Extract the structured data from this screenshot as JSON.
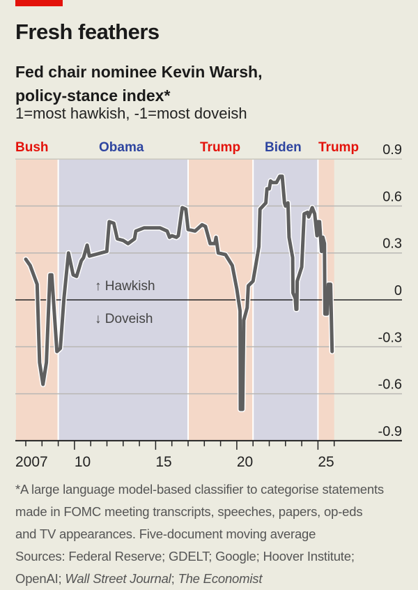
{
  "header": {
    "title": "Fresh feathers",
    "subtitle_line1": "Fed chair nominee Kevin Warsh,",
    "subtitle_line2": "policy-stance index*",
    "unit": "1=most hawkish, -1=most doveish"
  },
  "colors": {
    "republican": "#e3120b",
    "democrat": "#2e45a0",
    "republican_shade": "#f4d8c8",
    "democrat_shade": "#d5d5e2",
    "line": "#5f5f5f",
    "background": "#ecebe0"
  },
  "chart_data": {
    "type": "line",
    "ylabel": "",
    "xlabel": "",
    "ylim": [
      -0.9,
      0.9
    ],
    "xlim": [
      2006.4,
      2026.0
    ],
    "yticks": [
      0.9,
      0.6,
      0.3,
      0,
      -0.3,
      -0.6,
      -0.9
    ],
    "ytick_labels": [
      "0.9",
      "0.6",
      "0.3",
      "0",
      "-0.3",
      "-0.6",
      "-0.9"
    ],
    "xtick_labels": [
      {
        "year": 2007,
        "label": "2007"
      },
      {
        "year": 2010,
        "label": "10"
      },
      {
        "year": 2015,
        "label": "15"
      },
      {
        "year": 2020,
        "label": "20"
      },
      {
        "year": 2025,
        "label": "25"
      }
    ],
    "grid": true,
    "annotations": [
      "↑ Hawkish",
      "↓ Doveish"
    ],
    "periods": [
      {
        "label": "Bush",
        "party": "republican",
        "start": 2006.4,
        "end": 2009.0
      },
      {
        "label": "Obama",
        "party": "democrat",
        "start": 2009.0,
        "end": 2017.0
      },
      {
        "label": "Trump",
        "party": "republican",
        "start": 2017.0,
        "end": 2021.0
      },
      {
        "label": "Biden",
        "party": "democrat",
        "start": 2021.0,
        "end": 2025.0
      },
      {
        "label": "Trump",
        "party": "republican",
        "start": 2025.0,
        "end": 2026.0
      }
    ],
    "x": [
      2007.0,
      2007.27,
      2007.7,
      2007.85,
      2008.06,
      2008.27,
      2008.49,
      2008.6,
      2008.92,
      2009.13,
      2009.35,
      2009.63,
      2009.92,
      2010.13,
      2010.42,
      2010.56,
      2010.78,
      2010.92,
      2011.99,
      2012.14,
      2012.42,
      2012.64,
      2013.0,
      2013.3,
      2013.7,
      2013.78,
      2014.28,
      2015.28,
      2015.71,
      2015.86,
      2016.0,
      2016.28,
      2016.4,
      2016.64,
      2016.86,
      2017.0,
      2017.43,
      2017.86,
      2018.07,
      2018.36,
      2018.65,
      2018.72,
      2018.86,
      2019.3,
      2019.72,
      2020.0,
      2020.2,
      2020.22,
      2020.36,
      2020.43,
      2020.64,
      2020.71,
      2021.0,
      2021.15,
      2021.36,
      2021.43,
      2021.79,
      2021.86,
      2022.0,
      2022.08,
      2022.2,
      2022.44,
      2022.65,
      2022.8,
      2022.94,
      2023.0,
      2023.15,
      2023.22,
      2023.44,
      2023.46,
      2023.6,
      2023.65,
      2023.7,
      2023.72,
      2024.0,
      2024.15,
      2024.36,
      2024.43,
      2024.65,
      2024.8,
      2024.94,
      2025.0,
      2025.1,
      2025.22,
      2025.3,
      2025.4,
      2025.43,
      2025.57,
      2025.64,
      2025.78,
      2025.87
    ],
    "values": [
      0.26,
      0.22,
      0.1,
      -0.4,
      -0.54,
      -0.4,
      0.16,
      0.16,
      -0.33,
      -0.31,
      0.01,
      0.3,
      0.16,
      0.15,
      0.25,
      0.27,
      0.35,
      0.28,
      0.31,
      0.5,
      0.49,
      0.39,
      0.38,
      0.36,
      0.39,
      0.44,
      0.46,
      0.46,
      0.44,
      0.4,
      0.41,
      0.4,
      0.41,
      0.59,
      0.58,
      0.45,
      0.44,
      0.48,
      0.47,
      0.36,
      0.36,
      0.4,
      0.3,
      0.29,
      0.22,
      0.07,
      -0.07,
      -0.7,
      -0.7,
      -0.13,
      -0.05,
      0.09,
      0.12,
      0.21,
      0.34,
      0.58,
      0.62,
      0.71,
      0.71,
      0.76,
      0.75,
      0.75,
      0.79,
      0.79,
      0.62,
      0.6,
      0.62,
      0.4,
      0.27,
      0.045,
      0.01,
      -0.06,
      -0.06,
      0.12,
      0.21,
      0.55,
      0.56,
      0.53,
      0.59,
      0.55,
      0.41,
      0.5,
      0.5,
      0.31,
      0.4,
      0.36,
      -0.09,
      -0.09,
      0.1,
      0.1,
      -0.33
    ]
  },
  "footnote": {
    "line1": "*A large language model-based classifier to categorise statements",
    "line2": "made in FOMC meeting transcripts, speeches, papers, op-eds",
    "line3": "and TV appearances. Five-document moving average",
    "line4": "Sources: Federal Reserve; GDELT; Google; Hoover Institute;",
    "line5_a": "OpenAI; ",
    "line5_b": "Wall Street Journal",
    "line5_c": "; ",
    "line5_d": "The Economist"
  }
}
